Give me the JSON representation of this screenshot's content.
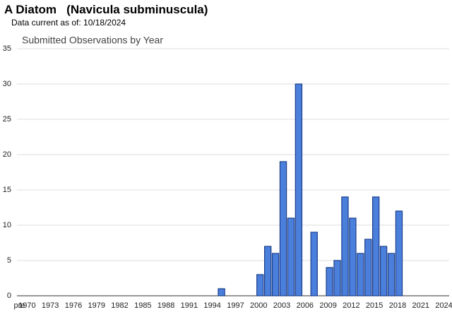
{
  "header": {
    "title": "A Diatom   (Navicula subminuscula)",
    "subtitle": "Data current as of: 10/18/2024"
  },
  "chart_data": {
    "type": "bar",
    "title": "Submitted Observations by Year",
    "categories": [
      "pre",
      "1970",
      null,
      null,
      "1973",
      null,
      null,
      "1976",
      null,
      null,
      "1979",
      null,
      null,
      "1982",
      null,
      null,
      "1985",
      null,
      null,
      "1988",
      null,
      null,
      "1991",
      null,
      null,
      "1994",
      null,
      null,
      "1997",
      null,
      null,
      "2000",
      null,
      null,
      "2003",
      null,
      null,
      "2006",
      null,
      null,
      "2009",
      null,
      null,
      "2012",
      null,
      null,
      "2015",
      null,
      null,
      "2018",
      null,
      null,
      "2021",
      null,
      null,
      "2024"
    ],
    "values": [
      0,
      0,
      0,
      0,
      0,
      0,
      0,
      0,
      0,
      0,
      0,
      0,
      0,
      0,
      0,
      0,
      0,
      0,
      0,
      0,
      0,
      0,
      0,
      0,
      0,
      0,
      1,
      0,
      0,
      0,
      0,
      3,
      7,
      6,
      19,
      11,
      30,
      0,
      9,
      0,
      4,
      5,
      14,
      11,
      6,
      8,
      14,
      7,
      6,
      12,
      0,
      0,
      0,
      0,
      0,
      0
    ],
    "color": "#4a7fdc",
    "ylim": [
      0,
      35
    ],
    "yticks": [
      0,
      5,
      10,
      15,
      20,
      25,
      30,
      35
    ],
    "grid": true
  }
}
